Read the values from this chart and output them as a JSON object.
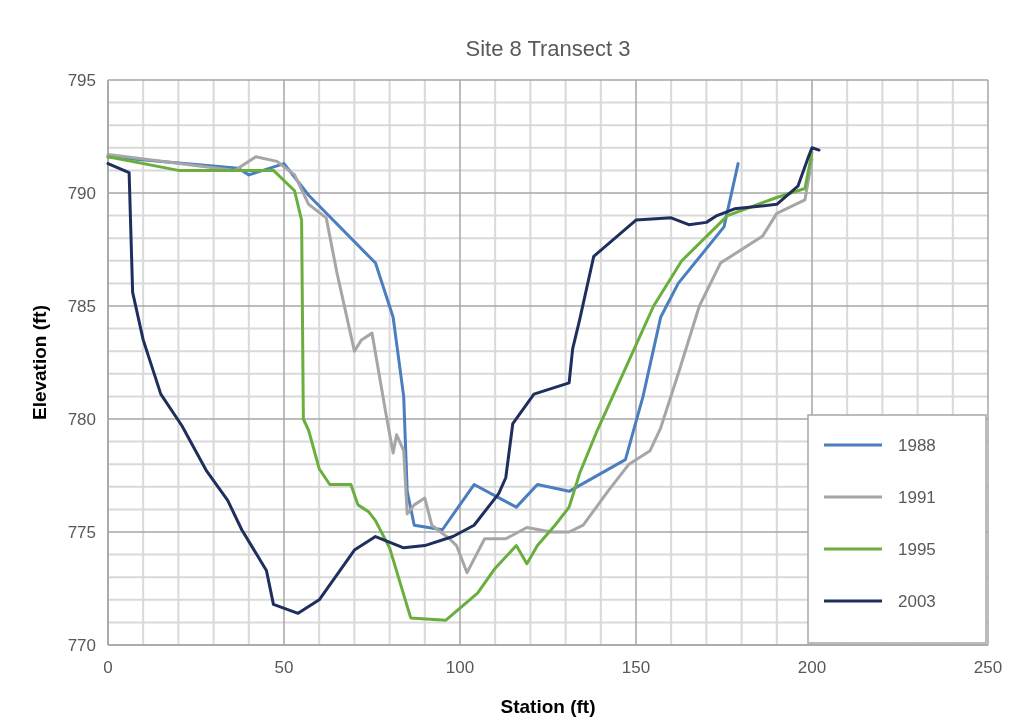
{
  "chart_data": {
    "type": "line",
    "title": "Site 8 Transect 3",
    "xlabel": "Station (ft)",
    "ylabel": "Elevation (ft)",
    "xlim": [
      0,
      250
    ],
    "xticks": [
      0,
      50,
      100,
      150,
      200,
      250
    ],
    "ylim": [
      770,
      795
    ],
    "yticks": [
      770,
      775,
      780,
      785,
      790,
      795
    ],
    "grid": true,
    "legend": "bottom right",
    "marker": "none",
    "line_style": "solid",
    "series": [
      {
        "name": "1988",
        "color": "#4a7ebf",
        "x": [
          0,
          37,
          40,
          50,
          57,
          76,
          81,
          84,
          85,
          87,
          95,
          104,
          110,
          116,
          122,
          131,
          147,
          152,
          157,
          162,
          175,
          179
        ],
        "values": [
          791.6,
          791.1,
          790.8,
          791.3,
          789.9,
          786.9,
          784.5,
          781,
          776.8,
          775.3,
          775.1,
          777.1,
          776.6,
          776.1,
          777.1,
          776.8,
          778.2,
          781,
          784.5,
          786,
          788.5,
          791.3
        ]
      },
      {
        "name": "1991",
        "color": "#a6a6a6",
        "x": [
          0,
          36,
          42,
          48,
          53,
          57,
          62,
          65,
          70,
          72,
          75,
          79,
          81,
          82,
          84,
          85,
          87,
          90,
          92,
          97,
          99,
          102,
          107,
          113,
          119,
          126,
          131,
          135,
          142,
          148,
          154,
          157,
          162,
          168,
          174,
          186,
          190,
          198,
          200
        ],
        "values": [
          791.7,
          791,
          791.6,
          791.4,
          790.8,
          789.5,
          788.9,
          786.5,
          783,
          783.5,
          783.8,
          780.2,
          778.5,
          779.3,
          778.6,
          775.8,
          776.2,
          776.5,
          775.3,
          774.7,
          774.4,
          773.2,
          774.7,
          774.7,
          775.2,
          775,
          775,
          775.3,
          776.8,
          778,
          778.6,
          779.6,
          782,
          785,
          786.9,
          788.1,
          789.1,
          789.7,
          791.5
        ]
      },
      {
        "name": "1995",
        "color": "#6aaf3d",
        "x": [
          0,
          20,
          40,
          47,
          53,
          55,
          55.5,
          57,
          60,
          63,
          69,
          71,
          74,
          76,
          80,
          86,
          96,
          105,
          110,
          116,
          119,
          122,
          127,
          131,
          134,
          139,
          146,
          155,
          163,
          176,
          190,
          198,
          200
        ],
        "values": [
          791.6,
          791,
          791,
          791,
          790.1,
          788.8,
          780,
          779.5,
          777.8,
          777.1,
          777.1,
          776.2,
          775.9,
          775.5,
          774.3,
          771.2,
          771.1,
          772.3,
          773.4,
          774.4,
          773.6,
          774.4,
          775.3,
          776.1,
          777.6,
          779.5,
          781.9,
          785,
          787,
          789,
          789.8,
          790.2,
          791.8
        ]
      },
      {
        "name": "2003",
        "color": "#1f2e5c",
        "x": [
          0,
          6,
          7,
          10,
          15,
          21,
          28,
          34,
          38,
          45,
          47,
          54,
          60,
          70,
          76,
          84,
          90,
          98,
          104,
          111,
          113,
          115,
          121,
          131,
          132,
          134,
          138,
          150,
          160,
          165,
          170,
          173,
          178,
          190,
          196,
          199,
          200,
          202
        ],
        "values": [
          791.3,
          790.9,
          785.6,
          783.5,
          781.1,
          779.7,
          777.7,
          776.4,
          775.1,
          773.3,
          771.8,
          771.4,
          772,
          774.2,
          774.8,
          774.3,
          774.4,
          774.8,
          775.3,
          776.7,
          777.4,
          779.8,
          781.1,
          781.6,
          783.1,
          784.4,
          787.2,
          788.8,
          788.9,
          788.6,
          788.7,
          789,
          789.3,
          789.5,
          790.3,
          791.6,
          792,
          791.9
        ]
      }
    ]
  }
}
